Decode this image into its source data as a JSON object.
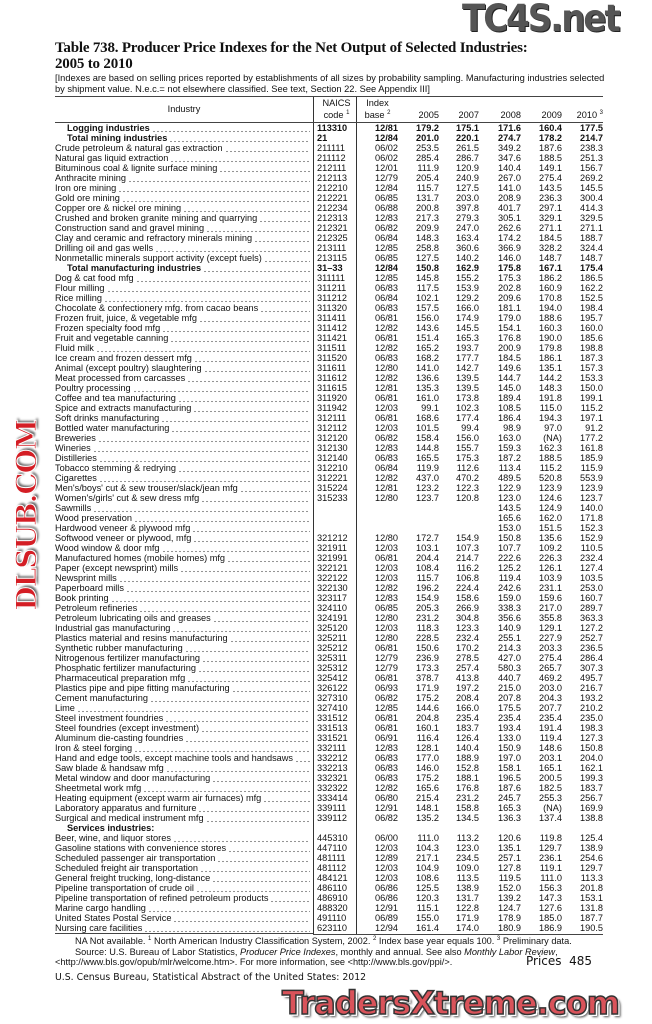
{
  "title_line1": "Table 738. Producer Price Indexes for the Net Output of Selected Industries:",
  "title_line2": "2005 to 2010",
  "headnote": "[Indexes are based on selling prices reported by establishments of all sizes by probability sampling. Manufacturing industries selected by shipment value. N.e.c.= not elsewhere classified. See text, Section 22. See Appendix III]",
  "header": {
    "industry": "Industry",
    "naics1": "NAICS",
    "naics2": "code",
    "naics_sup": "1",
    "base1": "Index",
    "base2": "base",
    "base_sup": "2",
    "y2005": "2005",
    "y2007": "2007",
    "y2008": "2008",
    "y2009": "2009",
    "y2010": "2010",
    "y2010_sup": "3"
  },
  "rows": [
    [
      "Logging industries",
      "113310",
      "12/81",
      "179.2",
      "175.1",
      "171.6",
      "160.4",
      "177.5",
      "bold"
    ],
    [
      "Total mining industries",
      "21",
      "12/84",
      "201.0",
      "220.1",
      "274.7",
      "178.2",
      "214.7",
      "bold"
    ],
    [
      "Crude petroleum & natural gas extraction",
      "211111",
      "06/02",
      "253.5",
      "261.5",
      "349.2",
      "187.6",
      "238.3",
      ""
    ],
    [
      "Natural gas liquid extraction",
      "211112",
      "06/02",
      "285.4",
      "286.7",
      "347.6",
      "188.5",
      "251.3",
      ""
    ],
    [
      "Bituminous coal & lignite surface mining",
      "212111",
      "12/01",
      "111.9",
      "120.9",
      "140.4",
      "149.1",
      "156.7",
      ""
    ],
    [
      "Anthracite mining",
      "212113",
      "12/79",
      "205.4",
      "240.9",
      "267.0",
      "275.4",
      "269.2",
      ""
    ],
    [
      "Iron ore mining",
      "212210",
      "12/84",
      "115.7",
      "127.5",
      "141.0",
      "143.5",
      "145.5",
      ""
    ],
    [
      "Gold ore mining",
      "212221",
      "06/85",
      "131.7",
      "203.0",
      "208.9",
      "236.3",
      "300.4",
      ""
    ],
    [
      "Copper ore & nickel ore mining",
      "212234",
      "06/88",
      "200.8",
      "397.8",
      "401.7",
      "297.1",
      "414.3",
      ""
    ],
    [
      "Crushed and broken granite mining and quarrying",
      "212313",
      "12/83",
      "217.3",
      "279.3",
      "305.1",
      "329.1",
      "329.5",
      ""
    ],
    [
      "Construction sand and gravel mining",
      "212321",
      "06/82",
      "209.9",
      "247.0",
      "262.6",
      "271.1",
      "271.1",
      ""
    ],
    [
      "Clay and ceramic and refractory minerals mining",
      "212325",
      "06/84",
      "148.3",
      "163.4",
      "174.2",
      "184.5",
      "188.7",
      ""
    ],
    [
      "Drilling oil and gas wells",
      "213111",
      "12/85",
      "258.8",
      "360.6",
      "366.9",
      "328.2",
      "324.4",
      ""
    ],
    [
      "Nonmetallic minerals support activity (except fuels)",
      "213115",
      "06/85",
      "127.5",
      "140.2",
      "146.0",
      "148.7",
      "148.7",
      ""
    ],
    [
      "Total manufacturing industries",
      "31–33",
      "12/84",
      "150.8",
      "162.9",
      "175.8",
      "167.1",
      "175.4",
      "bold"
    ],
    [
      "Dog & cat food mfg",
      "311111",
      "12/85",
      "145.8",
      "155.2",
      "175.3",
      "186.2",
      "186.5",
      ""
    ],
    [
      "Flour milling",
      "311211",
      "06/83",
      "117.5",
      "153.9",
      "202.8",
      "160.9",
      "162.2",
      ""
    ],
    [
      "Rice milling",
      "311212",
      "06/84",
      "102.1",
      "129.2",
      "209.6",
      "170.8",
      "152.5",
      ""
    ],
    [
      "Chocolate & confectionery mfg. from cacao beans",
      "311320",
      "06/83",
      "157.5",
      "166.0",
      "181.1",
      "194.0",
      "198.4",
      ""
    ],
    [
      "Frozen fruit, juice, & vegetable mfg",
      "311411",
      "06/81",
      "156.0",
      "174.9",
      "179.0",
      "188.6",
      "195.7",
      ""
    ],
    [
      "Frozen specialty food mfg",
      "311412",
      "12/82",
      "143.6",
      "145.5",
      "154.1",
      "160.3",
      "160.0",
      ""
    ],
    [
      "Fruit and vegetable canning",
      "311421",
      "06/81",
      "151.4",
      "165.3",
      "176.8",
      "190.0",
      "185.6",
      ""
    ],
    [
      "Fluid milk",
      "311511",
      "12/82",
      "165.2",
      "193.7",
      "200.9",
      "179.8",
      "198.8",
      ""
    ],
    [
      "Ice cream and frozen dessert mfg",
      "311520",
      "06/83",
      "168.2",
      "177.7",
      "184.5",
      "186.1",
      "187.3",
      ""
    ],
    [
      "Animal (except poultry) slaughtering",
      "311611",
      "12/80",
      "141.0",
      "142.7",
      "149.6",
      "135.1",
      "157.3",
      ""
    ],
    [
      "Meat processed from carcasses",
      "311612",
      "12/82",
      "136.6",
      "139.5",
      "144.7",
      "144.2",
      "153.3",
      ""
    ],
    [
      "Poultry processing",
      "311615",
      "12/81",
      "135.3",
      "139.5",
      "145.0",
      "148.3",
      "150.0",
      ""
    ],
    [
      "Coffee and tea manufacturing",
      "311920",
      "06/81",
      "161.0",
      "173.8",
      "189.4",
      "191.8",
      "199.1",
      ""
    ],
    [
      "Spice and extracts manufacturing",
      "311942",
      "12/03",
      "99.1",
      "102.3",
      "108.5",
      "115.0",
      "115.2",
      ""
    ],
    [
      "Soft drinks manufacturing",
      "312111",
      "06/81",
      "168.6",
      "177.4",
      "186.4",
      "194.3",
      "197.1",
      ""
    ],
    [
      "Bottled water manufacturing",
      "312112",
      "12/03",
      "101.5",
      "99.4",
      "98.9",
      "97.0",
      "91.2",
      ""
    ],
    [
      "Breweries",
      "312120",
      "06/82",
      "158.4",
      "156.0",
      "163.0",
      "(NA)",
      "177.2",
      ""
    ],
    [
      "Wineries",
      "312130",
      "12/83",
      "144.8",
      "155.7",
      "159.3",
      "162.3",
      "161.8",
      ""
    ],
    [
      "Distilleries",
      "312140",
      "06/83",
      "165.5",
      "175.3",
      "187.2",
      "188.5",
      "185.9",
      ""
    ],
    [
      "Tobacco stemming & redrying",
      "312210",
      "06/84",
      "119.9",
      "112.6",
      "113.4",
      "115.2",
      "115.9",
      ""
    ],
    [
      "Cigarettes",
      "312221",
      "12/82",
      "437.0",
      "470.2",
      "489.5",
      "520.8",
      "553.9",
      ""
    ],
    [
      "Men's/boys' cut & sew trouser/slack/jean mfg",
      "315224",
      "12/81",
      "123.2",
      "122.3",
      "122.9",
      "123.9",
      "123.9",
      ""
    ],
    [
      "Women's/girls' cut & sew dress mfg",
      "315233",
      "12/80",
      "123.7",
      "120.8",
      "123.0",
      "124.6",
      "123.7",
      ""
    ],
    [
      "Sawmills",
      "",
      "",
      "",
      "",
      "143.5",
      "124.9",
      "140.0",
      ""
    ],
    [
      "Wood preservation",
      "",
      "",
      "",
      "",
      "165.6",
      "162.0",
      "171.8",
      ""
    ],
    [
      "Hardwood veneer & plywood mfg",
      "",
      "",
      "",
      "",
      "153.0",
      "151.5",
      "152.3",
      ""
    ],
    [
      "Softwood veneer or plywood, mfg",
      "321212",
      "12/80",
      "172.7",
      "154.9",
      "150.8",
      "135.6",
      "152.9",
      ""
    ],
    [
      "Wood window & door mfg",
      "321911",
      "12/03",
      "103.1",
      "107.3",
      "107.7",
      "109.2",
      "110.5",
      ""
    ],
    [
      "Manufactured homes (mobile homes) mfg",
      "321991",
      "06/81",
      "204.4",
      "214.7",
      "222.6",
      "226.3",
      "232.4",
      ""
    ],
    [
      "Paper (except newsprint) mills",
      "322121",
      "12/03",
      "108.4",
      "116.2",
      "125.2",
      "126.1",
      "127.4",
      ""
    ],
    [
      "Newsprint mills",
      "322122",
      "12/03",
      "115.7",
      "106.8",
      "119.4",
      "103.9",
      "103.5",
      ""
    ],
    [
      "Paperboard mills",
      "322130",
      "12/82",
      "196.2",
      "224.4",
      "242.6",
      "231.1",
      "253.0",
      ""
    ],
    [
      "Book printing",
      "323117",
      "12/83",
      "154.9",
      "158.6",
      "159.0",
      "159.6",
      "160.7",
      ""
    ],
    [
      "Petroleum refineries",
      "324110",
      "06/85",
      "205.3",
      "266.9",
      "338.3",
      "217.0",
      "289.7",
      ""
    ],
    [
      "Petroleum lubricating oils and greases",
      "324191",
      "12/80",
      "231.2",
      "304.8",
      "356.6",
      "355.8",
      "363.3",
      ""
    ],
    [
      "Industrial gas manufacturing",
      "325120",
      "12/03",
      "118.3",
      "123.3",
      "140.9",
      "129.1",
      "127.2",
      ""
    ],
    [
      "Plastics material and resins manufacturing",
      "325211",
      "12/80",
      "228.5",
      "232.4",
      "255.1",
      "227.9",
      "252.7",
      ""
    ],
    [
      "Synthetic rubber manufacturing",
      "325212",
      "06/81",
      "150.6",
      "170.2",
      "214.3",
      "203.3",
      "236.5",
      ""
    ],
    [
      "Nitrogenous fertilizer manufacturing",
      "325311",
      "12/79",
      "236.9",
      "278.5",
      "427.0",
      "275.4",
      "286.4",
      ""
    ],
    [
      "Phosphatic fertilizer manufacturing",
      "325312",
      "12/79",
      "173.3",
      "257.4",
      "580.3",
      "265.7",
      "307.3",
      ""
    ],
    [
      "Pharmaceutical preparation mfg",
      "325412",
      "06/81",
      "378.7",
      "413.8",
      "440.7",
      "469.2",
      "495.7",
      ""
    ],
    [
      "Plastics pipe and pipe fitting manufacturing",
      "326122",
      "06/93",
      "171.9",
      "197.2",
      "215.0",
      "203.0",
      "216.7",
      ""
    ],
    [
      "Cement manufacturing",
      "327310",
      "06/82",
      "175.2",
      "208.4",
      "207.8",
      "204.3",
      "193.2",
      ""
    ],
    [
      "Lime",
      "327410",
      "12/85",
      "144.6",
      "166.0",
      "175.5",
      "207.7",
      "210.2",
      ""
    ],
    [
      "Steel investment foundries",
      "331512",
      "06/81",
      "204.8",
      "235.4",
      "235.4",
      "235.4",
      "235.0",
      ""
    ],
    [
      "Steel foundries (except investment)",
      "331513",
      "06/81",
      "160.1",
      "183.7",
      "193.4",
      "191.4",
      "198.3",
      ""
    ],
    [
      "Aluminum die-casting foundries",
      "331521",
      "06/91",
      "116.4",
      "126.4",
      "133.0",
      "119.4",
      "127.3",
      ""
    ],
    [
      "Iron & steel forging",
      "332111",
      "12/83",
      "128.1",
      "140.4",
      "150.9",
      "148.6",
      "150.8",
      ""
    ],
    [
      "Hand and edge tools, except machine tools and handsaws",
      "332212",
      "06/83",
      "177.0",
      "188.9",
      "197.0",
      "203.1",
      "204.0",
      ""
    ],
    [
      "Saw blade & handsaw mfg",
      "332213",
      "06/83",
      "146.0",
      "152.8",
      "158.1",
      "165.1",
      "162.1",
      ""
    ],
    [
      "Metal window and door manufacturing",
      "332321",
      "06/83",
      "175.2",
      "188.1",
      "196.5",
      "200.5",
      "199.3",
      ""
    ],
    [
      "Sheetmetal work mfg",
      "332322",
      "12/82",
      "165.6",
      "176.8",
      "187.6",
      "182.5",
      "183.7",
      ""
    ],
    [
      "Heating equipment (except warm air furnaces) mfg",
      "333414",
      "06/80",
      "215.4",
      "231.2",
      "245.7",
      "255.3",
      "256.7",
      ""
    ],
    [
      "Laboratory apparatus and furniture",
      "339111",
      "12/91",
      "148.1",
      "158.8",
      "165.3",
      "(NA)",
      "169.9",
      ""
    ],
    [
      "Surgical and medical instrument mfg",
      "339112",
      "06/82",
      "135.2",
      "134.5",
      "136.3",
      "137.4",
      "138.8",
      ""
    ],
    [
      "Services industries:",
      "",
      "",
      "",
      "",
      "",
      "",
      "",
      "hdr"
    ],
    [
      "Beer, wine, and liquor stores",
      "445310",
      "06/00",
      "111.0",
      "113.2",
      "120.6",
      "119.8",
      "125.4",
      ""
    ],
    [
      "Gasoline stations with convenience stores",
      "447110",
      "12/03",
      "104.3",
      "123.0",
      "135.1",
      "129.7",
      "138.9",
      ""
    ],
    [
      "Scheduled passenger air transportation",
      "481111",
      "12/89",
      "217.1",
      "234.5",
      "257.1",
      "236.1",
      "254.6",
      ""
    ],
    [
      "Scheduled freight air transportation",
      "481112",
      "12/03",
      "104.9",
      "109.0",
      "127.8",
      "119.1",
      "129.7",
      ""
    ],
    [
      "General freight trucking, long-distance",
      "484121",
      "12/03",
      "108.6",
      "113.5",
      "119.5",
      "111.0",
      "113.3",
      ""
    ],
    [
      "Pipeline transportation of crude oil",
      "486110",
      "06/86",
      "125.5",
      "138.9",
      "152.0",
      "156.3",
      "201.8",
      ""
    ],
    [
      "Pipeline transportation of refined petroleum products",
      "486910",
      "06/86",
      "120.3",
      "131.7",
      "139.2",
      "147.3",
      "153.1",
      ""
    ],
    [
      "Marine cargo handling",
      "488320",
      "12/91",
      "115.1",
      "122.8",
      "124.7",
      "127.6",
      "131.8",
      ""
    ],
    [
      "United States Postal Service",
      "491110",
      "06/89",
      "155.0",
      "171.9",
      "178.9",
      "185.0",
      "187.7",
      ""
    ],
    [
      "Nursing care facilities",
      "623110",
      "12/94",
      "161.4",
      "174.0",
      "180.9",
      "186.9",
      "190.5",
      ""
    ]
  ],
  "footnotes": {
    "na": "NA Not available.",
    "f1_sup": "1",
    "f1": " North American Industry Classification System, 2002.",
    "f2_sup": "2",
    "f2": " Index base year equals 100.",
    "f3_sup": "3",
    "f3": " Preliminary data.",
    "source_a": "Source: U.S. Bureau of Labor Statistics, ",
    "source_b": "Producer Price Indexes",
    "source_c": ", monthly and annual. See also ",
    "source_d": "Monthly Labor Review",
    "source_e": ",",
    "source_f": "<http://www.bls.gov/opub/mlr/welcome.htm>. For more information, see <http://www.bls.gov/ppi/>."
  },
  "page_label": "Prices  485",
  "census_line": "U.S. Census Bureau, Statistical Abstract of the United States: 2012",
  "watermarks": {
    "top": "TC4S.net",
    "middle": "DLSUB.COM",
    "bottom": "TradersXtreme.com"
  }
}
